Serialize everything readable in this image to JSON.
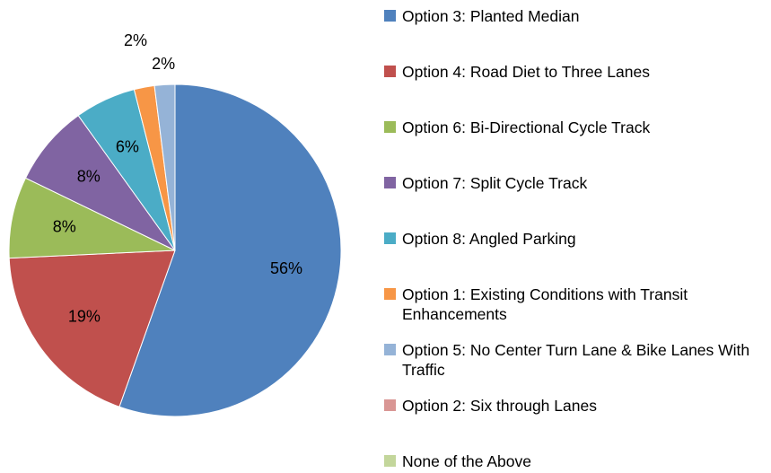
{
  "chart_data": {
    "type": "pie",
    "categories": [
      "Option 3: Planted Median",
      "Option 4: Road Diet to Three Lanes",
      "Option 6: Bi-Directional Cycle Track",
      "Option 7: Split Cycle Track",
      "Option 8: Angled Parking",
      "Option 1: Existing Conditions with Transit Enhancements",
      "Option 5: No Center Turn Lane & Bike Lanes With Traffic",
      "Option 2: Six through Lanes",
      "None of the Above"
    ],
    "values": [
      56,
      19,
      8,
      8,
      6,
      2,
      2,
      0,
      0
    ],
    "value_labels": [
      "56%",
      "19%",
      "8%",
      "8%",
      "6%",
      "2%",
      "2%",
      null,
      null
    ],
    "colors": [
      "#4F81BD",
      "#C0504D",
      "#9BBB59",
      "#8064A2",
      "#4BACC6",
      "#F79646",
      "#95B3D7",
      "#D99694",
      "#C3D69B"
    ],
    "legend": "right"
  }
}
